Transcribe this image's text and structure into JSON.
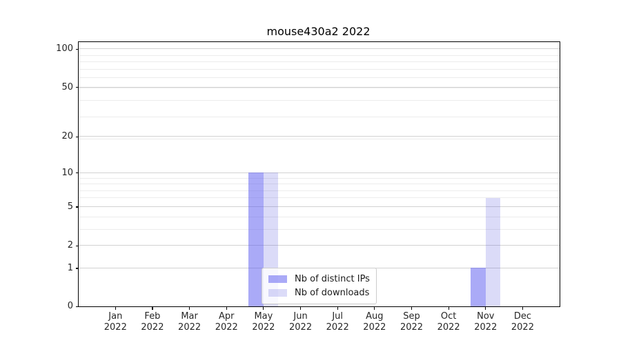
{
  "chart_data": {
    "type": "bar",
    "title": "mouse430a2 2022",
    "categories": [
      "Jan",
      "Feb",
      "Mar",
      "Apr",
      "May",
      "Jun",
      "Jul",
      "Aug",
      "Sep",
      "Oct",
      "Nov",
      "Dec"
    ],
    "category_sublabel": "2022",
    "series": [
      {
        "name": "Nb of distinct IPs",
        "fill": "rgba(85,85,240,0.5)",
        "color_hex": "#aaaaf7",
        "values": [
          0,
          0,
          0,
          0,
          10,
          0,
          0,
          0,
          0,
          0,
          1,
          0
        ]
      },
      {
        "name": "Nb of downloads",
        "fill": "rgba(75,75,220,0.2)",
        "color_hex": "#dbdbf8",
        "values": [
          0,
          0,
          0,
          0,
          10,
          0,
          0,
          0,
          0,
          0,
          6,
          0
        ]
      }
    ],
    "yscale": "log1p",
    "yticks": [
      0,
      1,
      2,
      5,
      10,
      20,
      50,
      100
    ],
    "yticks_minor": [
      3,
      4,
      6,
      7,
      8,
      9,
      19,
      29,
      39,
      49,
      59,
      69,
      79,
      89
    ],
    "ylim": [
      0,
      113
    ],
    "xlabel": "",
    "ylabel": "",
    "grid": "on",
    "grid_color": "#d2d2d2",
    "grid_minor_color": "#ececec",
    "axis_color": "#000000",
    "text_color": "#262626",
    "legend_position": "lower center (inside plot)"
  }
}
